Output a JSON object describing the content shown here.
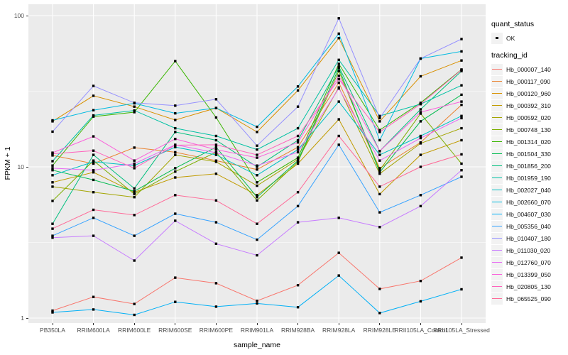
{
  "chart_data": {
    "type": "line",
    "title": "",
    "xlabel": "sample_name",
    "ylabel": "FPKM + 1",
    "y_scale": "log10",
    "ylim": [
      1,
      110
    ],
    "y_axis_ticks": [
      1,
      10,
      100
    ],
    "y_minor_gridlines": [
      3.1623,
      31.6228
    ],
    "grid": true,
    "legend_position": "right",
    "point_shape": "square",
    "categories": [
      "PB350LA",
      "RRIM600LA",
      "RRIM600LE",
      "RRIM600SE",
      "RRIM600PE",
      "RRIM901LA",
      "RRIM928BA",
      "RRIM928LA",
      "RRIM928LE",
      "RRII105LA_Control",
      "RRII105LA_Stressed"
    ],
    "series": [
      {
        "name": "Hb_000007_140",
        "color": "#F8766D",
        "values": [
          1.12,
          1.38,
          1.24,
          1.85,
          1.7,
          1.3,
          1.65,
          2.7,
          1.56,
          1.76,
          2.51
        ]
      },
      {
        "name": "Hb_000117_090",
        "color": "#EA8331",
        "values": [
          11.9,
          10.5,
          13.4,
          12.5,
          11.0,
          9.6,
          13.5,
          36,
          9.8,
          14.5,
          25.7
        ]
      },
      {
        "name": "Hb_000120_960",
        "color": "#D89000",
        "values": [
          20,
          29.5,
          25,
          20.4,
          24.5,
          17,
          32,
          71,
          20,
          39.7,
          50.5
        ]
      },
      {
        "name": "Hb_000392_310",
        "color": "#C09B00",
        "values": [
          7.9,
          9.2,
          6.8,
          8.5,
          9.0,
          6.5,
          10.5,
          20.6,
          6.6,
          12.0,
          15.0
        ]
      },
      {
        "name": "Hb_000592_020",
        "color": "#A3A500",
        "values": [
          7.4,
          6.8,
          6.3,
          12.0,
          10.8,
          7.5,
          11.2,
          33.5,
          9.0,
          14.3,
          18.0
        ]
      },
      {
        "name": "Hb_000748_130",
        "color": "#7CAE00",
        "values": [
          5.95,
          11.0,
          6.6,
          9.3,
          12.5,
          6.0,
          10.8,
          43,
          9.5,
          22.5,
          10.5
        ]
      },
      {
        "name": "Hb_001314_020",
        "color": "#39B600",
        "values": [
          10.2,
          21.5,
          23.0,
          50,
          21.2,
          7.9,
          11.5,
          48,
          17.5,
          26.5,
          44
        ]
      },
      {
        "name": "Hb_001504_330",
        "color": "#00BB4E",
        "values": [
          9.5,
          8.2,
          6.9,
          9.8,
          13.5,
          6.3,
          11.0,
          45,
          9.2,
          20.0,
          30
        ]
      },
      {
        "name": "Hb_001856_200",
        "color": "#00BF7D",
        "values": [
          4.2,
          12.0,
          7.2,
          17.0,
          15.0,
          10.0,
          15.0,
          46,
          12.7,
          24.0,
          43
        ]
      },
      {
        "name": "Hb_001959_190",
        "color": "#00C1A3",
        "values": [
          10.9,
          21.9,
          23.6,
          18.0,
          16.0,
          13.0,
          18.0,
          51,
          21.7,
          26.0,
          34.6
        ]
      },
      {
        "name": "Hb_002027_040",
        "color": "#00BFC4",
        "values": [
          8.8,
          10.8,
          10.2,
          13.5,
          12.0,
          8.8,
          13.0,
          27,
          12.0,
          16.0,
          21.7
        ]
      },
      {
        "name": "Hb_002660_070",
        "color": "#00BAE0",
        "values": [
          20.3,
          23.7,
          26.3,
          22.6,
          24.5,
          18.4,
          34,
          76,
          15.0,
          52,
          58
        ]
      },
      {
        "name": "Hb_004607_030",
        "color": "#00B0F6",
        "values": [
          1.09,
          1.14,
          1.05,
          1.28,
          1.19,
          1.25,
          1.18,
          1.91,
          1.08,
          1.29,
          1.55
        ]
      },
      {
        "name": "Hb_005356_040",
        "color": "#35A2FF",
        "values": [
          3.5,
          4.6,
          3.5,
          4.9,
          4.3,
          3.3,
          5.5,
          14,
          5.0,
          6.5,
          8.6
        ]
      },
      {
        "name": "Hb_010407_180",
        "color": "#9590FF",
        "values": [
          17.1,
          34.3,
          26.5,
          25.4,
          28,
          13.8,
          25,
          96,
          21,
          52,
          70
        ]
      },
      {
        "name": "Hb_011030_020",
        "color": "#C77CFF",
        "values": [
          3.4,
          3.5,
          2.4,
          4.4,
          3.1,
          2.6,
          4.3,
          4.6,
          4.0,
          5.5,
          9.5
        ]
      },
      {
        "name": "Hb_012760_070",
        "color": "#E76BF3",
        "values": [
          9.8,
          9.5,
          10.5,
          14.0,
          12.4,
          10.2,
          12.5,
          33,
          11.0,
          15.5,
          21.0
        ]
      },
      {
        "name": "Hb_013399_050",
        "color": "#FA62DB",
        "values": [
          12.4,
          15.9,
          11.0,
          15.3,
          13.0,
          11.5,
          14.5,
          40,
          12.7,
          23.0,
          27.0
        ]
      },
      {
        "name": "Hb_020805_130",
        "color": "#FF62BC",
        "values": [
          12.2,
          12.8,
          9.8,
          13.9,
          14.0,
          12.0,
          16.0,
          38,
          17.0,
          26.0,
          43.8
        ]
      },
      {
        "name": "Hb_065525_090",
        "color": "#FF6A98",
        "values": [
          3.9,
          5.2,
          4.8,
          6.5,
          6.0,
          4.2,
          6.8,
          16,
          7.4,
          10.0,
          12.1
        ]
      }
    ],
    "legend": {
      "quant_status": {
        "title": "quant_status",
        "items": [
          {
            "label": "OK",
            "symbol": "point",
            "color": "#000000"
          }
        ]
      },
      "tracking": {
        "title": "tracking_id"
      }
    },
    "styles": {
      "panel_bg": "#EBEBEB",
      "grid_color": "#FFFFFF",
      "point_color": "#000000",
      "axis_text_color": "#4D4D4D",
      "legend_key_bg": "#F2F2F2"
    }
  }
}
